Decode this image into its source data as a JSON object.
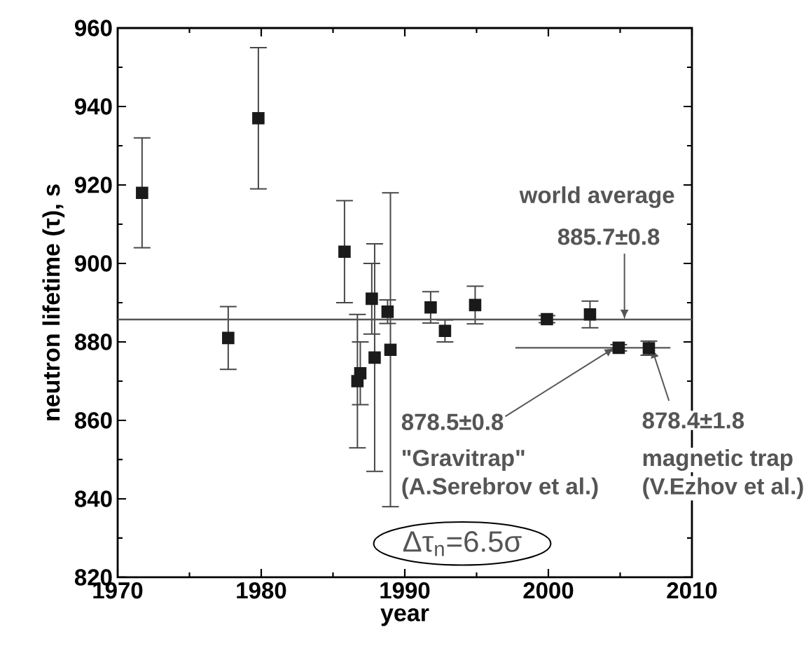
{
  "chart_data": {
    "type": "scatter",
    "xlabel": "year",
    "ylabel": "neutron lifetime (τ), s",
    "xlim": [
      1970,
      2010
    ],
    "xticks": [
      1970,
      1980,
      1990,
      2000,
      2010
    ],
    "ylim": [
      820,
      960
    ],
    "yticks": [
      820,
      840,
      860,
      880,
      900,
      920,
      940,
      960
    ],
    "marker": "square",
    "grid": false,
    "series": [
      {
        "color": "#1a1a1a",
        "x": [
          1971.7,
          1977.7,
          1979.8,
          1985.8,
          1986.7,
          1986.9,
          1987.7,
          1987.9,
          1988.8,
          1989.0,
          1991.8,
          1992.8,
          1994.9,
          1999.9,
          2002.9,
          2004.9,
          2007.0
        ],
        "values": [
          918,
          881,
          937,
          903,
          870,
          872,
          891,
          876,
          887.7,
          878,
          888.8,
          882.8,
          889.4,
          885.8,
          887,
          878.5,
          878.4
        ],
        "errors": [
          14,
          8,
          18,
          13,
          17,
          8,
          9,
          29,
          3,
          40,
          4,
          2.8,
          4.8,
          0.9,
          3.4,
          0.8,
          1.8
        ]
      },
      {
        "type": "line",
        "marker": "none",
        "color": "#555555",
        "x": [
          1997.7,
          2008.5
        ],
        "values": [
          878.5,
          878.5
        ]
      }
    ],
    "ref_lines": [
      {
        "axis": "y",
        "value": 885.7,
        "color": "#555555"
      }
    ],
    "annotations": [
      "world average",
      {
        "text": "885.7±0.8",
        "x": 2005.3,
        "y": 885.7
      },
      {
        "text": "878.5±0.8",
        "x": 2004.6,
        "y": 878.5
      },
      "\"Gravitrap\"",
      "(A.Serebrov et al.)",
      {
        "text": "878.4±1.8",
        "x": 2007.2,
        "y": 878.4
      },
      "magnetic trap",
      "(V.Ezhov et al.)",
      "Δτ$_{n}$=6.5σ"
    ]
  }
}
